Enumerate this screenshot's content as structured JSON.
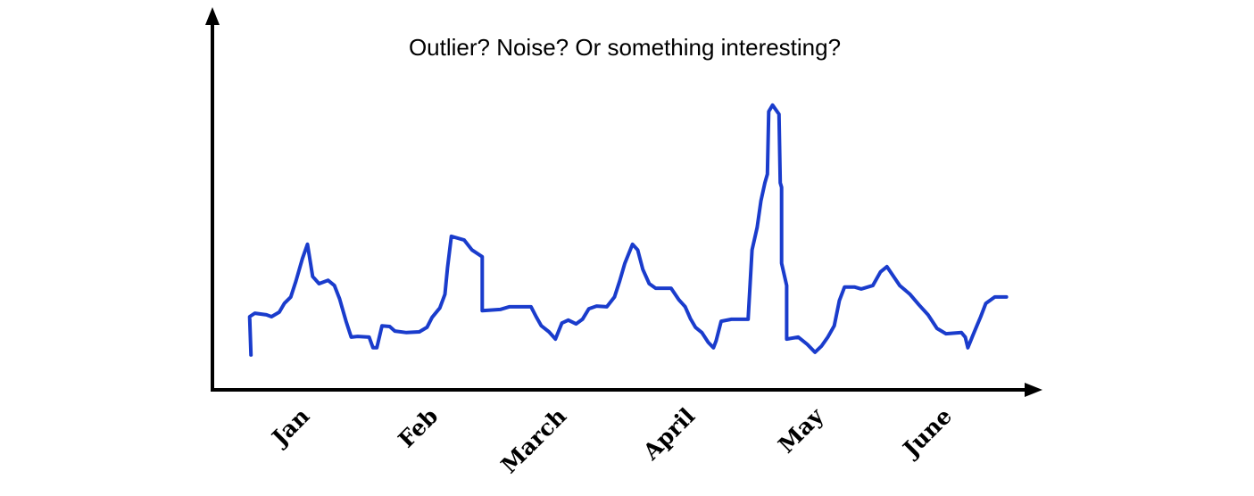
{
  "chart_data": {
    "type": "line",
    "title": "Outlier? Noise? Or something interesting?",
    "x": [
      -0.34,
      -0.35,
      -0.31,
      -0.22,
      -0.18,
      -0.12,
      -0.08,
      -0.03,
      0.01,
      0.06,
      0.1,
      0.14,
      0.19,
      0.26,
      0.31,
      0.35,
      0.4,
      0.44,
      0.49,
      0.58,
      0.61,
      0.64,
      0.68,
      0.74,
      0.78,
      0.87,
      0.97,
      1.03,
      1.07,
      1.13,
      1.17,
      1.19,
      1.22,
      1.32,
      1.38,
      1.46,
      1.46,
      1.6,
      1.67,
      1.84,
      1.88,
      1.92,
      1.98,
      2.03,
      2.08,
      2.13,
      2.19,
      2.24,
      2.29,
      2.35,
      2.43,
      2.49,
      2.53,
      2.57,
      2.63,
      2.67,
      2.71,
      2.76,
      2.81,
      2.93,
      2.99,
      3.04,
      3.08,
      3.12,
      3.17,
      3.22,
      3.26,
      3.28,
      3.32,
      3.4,
      3.53,
      3.56,
      3.6,
      3.63,
      3.66,
      3.68,
      3.69,
      3.72,
      3.77,
      3.78,
      3.79,
      3.79,
      3.83,
      3.83,
      3.92,
      3.99,
      4.05,
      4.1,
      4.15,
      4.2,
      4.24,
      4.28,
      4.36,
      4.41,
      4.5,
      4.56,
      4.61,
      4.71,
      4.79,
      4.86,
      4.93,
      5.0,
      5.07,
      5.19,
      5.22,
      5.24,
      5.28,
      5.31,
      5.34,
      5.38,
      5.45,
      5.54
    ],
    "series": [
      {
        "color": "#1a3ccc",
        "values": [
          9.2,
          19.3,
          20.2,
          19.8,
          19.3,
          20.5,
          22.8,
          24.5,
          28.7,
          34.6,
          38.4,
          29.9,
          28.0,
          28.9,
          27.5,
          24.0,
          18.1,
          13.9,
          14.1,
          13.9,
          11.1,
          11.1,
          16.9,
          16.7,
          15.5,
          15.1,
          15.3,
          16.5,
          19.1,
          21.6,
          25.2,
          32.2,
          40.5,
          39.5,
          36.9,
          35.1,
          20.9,
          21.2,
          21.9,
          21.9,
          19.3,
          16.9,
          15.3,
          13.4,
          17.6,
          18.4,
          17.4,
          18.6,
          21.4,
          22.1,
          21.9,
          24.5,
          28.7,
          33.4,
          38.4,
          36.9,
          31.8,
          28.0,
          26.8,
          26.8,
          23.8,
          21.9,
          18.8,
          16.5,
          15.1,
          12.5,
          11.1,
          12.9,
          18.1,
          18.6,
          18.6,
          36.9,
          42.8,
          49.9,
          54.6,
          56.9,
          73.4,
          75.1,
          72.7,
          54.6,
          53.4,
          33.4,
          27.5,
          13.4,
          13.9,
          12.0,
          9.9,
          11.5,
          13.9,
          16.9,
          23.5,
          27.1,
          27.1,
          26.6,
          27.5,
          31.1,
          32.5,
          27.5,
          25.2,
          22.4,
          19.8,
          16.2,
          14.8,
          15.1,
          13.9,
          11.1,
          14.4,
          16.9,
          19.3,
          22.8,
          24.5,
          24.5
        ]
      }
    ],
    "xlim": [
      -0.64,
      5.8
    ],
    "xticks": [
      {
        "value": 0,
        "label": "Jan"
      },
      {
        "value": 1,
        "label": "Feb"
      },
      {
        "value": 2,
        "label": "March"
      },
      {
        "value": 3,
        "label": "April"
      },
      {
        "value": 4,
        "label": "May"
      },
      {
        "value": 5,
        "label": "June"
      }
    ],
    "ylim": [
      0,
      100
    ]
  }
}
